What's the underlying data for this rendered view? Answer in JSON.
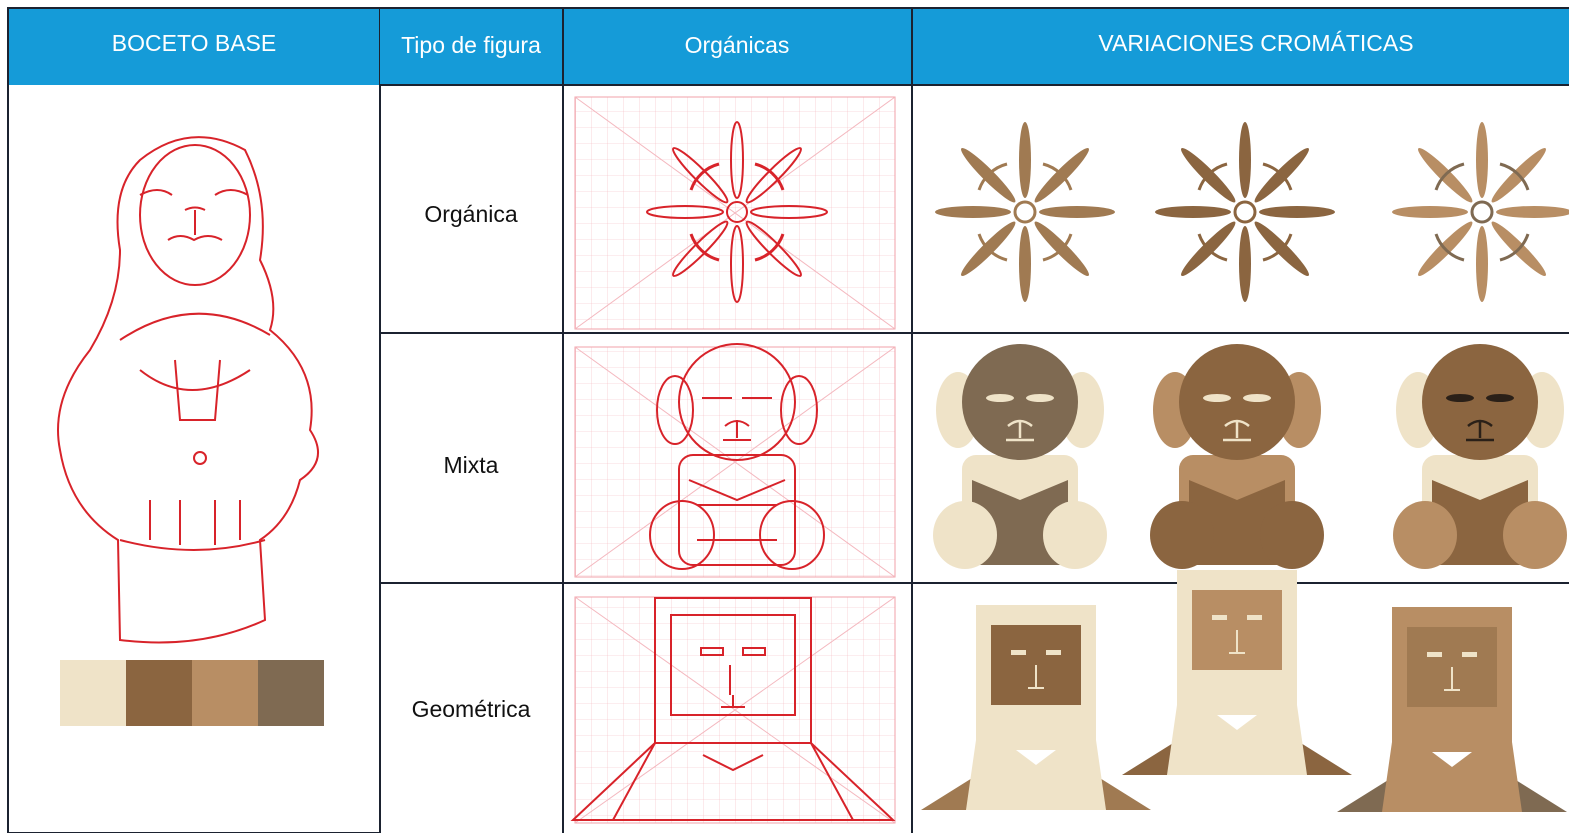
{
  "header": {
    "base_sketch": "BOCETO BASE",
    "figure_type": "Tipo de figura",
    "organic": "Orgánicas",
    "variations": "VARIACIONES CROMÁTICAS"
  },
  "rows": [
    {
      "label": "Orgánica"
    },
    {
      "label": "Mixta"
    },
    {
      "label": "Geométrica"
    }
  ]
}
